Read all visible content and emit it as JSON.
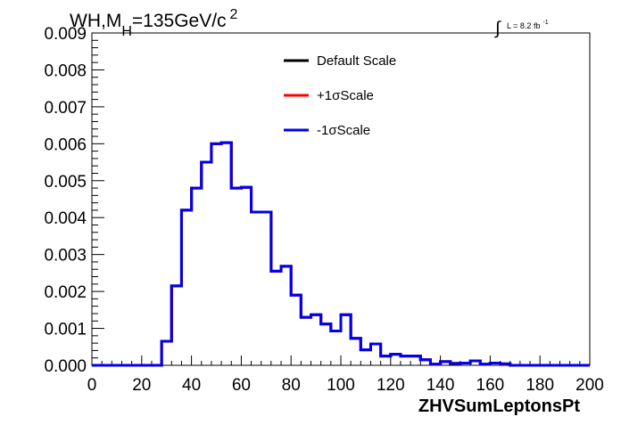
{
  "chart_data": {
    "type": "line",
    "title": "WH,M",
    "title_sub": "H",
    "title_rest": "=135GeV/c",
    "title_sup": "2",
    "lumi_integral": "∫",
    "lumi_text": "L = 8.2 fb",
    "lumi_sup": "-1",
    "xlabel": "ZHVSumLeptonsPt",
    "ylabel": "",
    "xlim": [
      0,
      200
    ],
    "ylim": [
      0,
      0.009
    ],
    "x_ticks": [
      "0",
      "20",
      "40",
      "60",
      "80",
      "100",
      "120",
      "140",
      "160",
      "180",
      "200"
    ],
    "y_ticks": [
      "0.000",
      "0.001",
      "0.002",
      "0.003",
      "0.004",
      "0.005",
      "0.006",
      "0.007",
      "0.008",
      "0.009"
    ],
    "bin_width": 4,
    "bin_edges_start": 0,
    "legend_placement": "top-center",
    "series": [
      {
        "name": "Default Scale",
        "color": "#000000",
        "values": [
          0,
          0,
          0,
          0,
          0,
          0,
          0,
          0.00065,
          0.00215,
          0.0042,
          0.0048,
          0.0055,
          0.006,
          0.00603,
          0.0048,
          0.00482,
          0.00415,
          0.00415,
          0.00255,
          0.00268,
          0.0019,
          0.0013,
          0.00137,
          0.00112,
          0.00093,
          0.00137,
          0.00073,
          0.00042,
          0.00058,
          0.00025,
          0.0003,
          0.00025,
          0.00025,
          0.00015,
          3e-05,
          0.0001,
          5e-05,
          6e-05,
          0.00012,
          3e-05,
          6e-05,
          4e-05,
          0,
          0,
          0,
          0,
          0,
          0,
          0,
          0
        ]
      },
      {
        "name": "+1σScale",
        "color": "#ff0000",
        "values": [
          0,
          0,
          0,
          0,
          0,
          0,
          0,
          0.00065,
          0.00215,
          0.0042,
          0.0048,
          0.0055,
          0.006,
          0.00603,
          0.0048,
          0.00482,
          0.00415,
          0.00415,
          0.00255,
          0.00268,
          0.0019,
          0.0013,
          0.00137,
          0.00112,
          0.00093,
          0.00137,
          0.00073,
          0.00042,
          0.00058,
          0.00025,
          0.0003,
          0.00025,
          0.00025,
          0.00015,
          3e-05,
          0.0001,
          5e-05,
          6e-05,
          0.00012,
          3e-05,
          6e-05,
          4e-05,
          0,
          0,
          0,
          0,
          0,
          0,
          0,
          0
        ]
      },
      {
        "name": "-1σScale",
        "color": "#0000ee",
        "values": [
          0,
          0,
          0,
          0,
          0,
          0,
          0,
          0.00065,
          0.00215,
          0.0042,
          0.0048,
          0.0055,
          0.006,
          0.00603,
          0.0048,
          0.00482,
          0.00415,
          0.00415,
          0.00255,
          0.00268,
          0.0019,
          0.0013,
          0.00137,
          0.00112,
          0.00093,
          0.00137,
          0.00073,
          0.00042,
          0.00058,
          0.00025,
          0.0003,
          0.00025,
          0.00025,
          0.00015,
          3e-05,
          0.0001,
          5e-05,
          6e-05,
          0.00012,
          3e-05,
          6e-05,
          4e-05,
          0,
          0,
          0,
          0,
          0,
          0,
          0,
          0
        ]
      }
    ]
  }
}
